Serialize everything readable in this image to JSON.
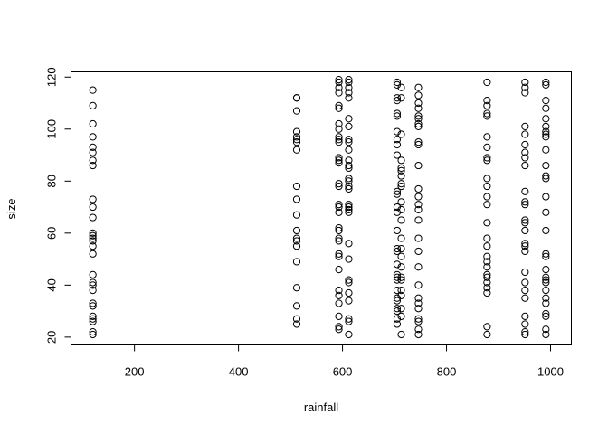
{
  "chart_data": {
    "type": "scatter",
    "xlabel": "rainfall",
    "ylabel": "size",
    "xlim": [
      78,
      1040
    ],
    "ylim": [
      17,
      122
    ],
    "xticks": [
      200,
      400,
      600,
      800,
      1000
    ],
    "yticks": [
      20,
      40,
      60,
      80,
      100,
      120
    ],
    "marker": "open-circle",
    "grid": false,
    "points": [
      [
        120,
        115
      ],
      [
        120,
        109
      ],
      [
        120,
        102
      ],
      [
        120,
        97
      ],
      [
        120,
        93
      ],
      [
        120,
        91
      ],
      [
        120,
        88
      ],
      [
        120,
        86
      ],
      [
        120,
        73
      ],
      [
        120,
        70
      ],
      [
        120,
        66
      ],
      [
        120,
        60
      ],
      [
        120,
        59
      ],
      [
        120,
        58
      ],
      [
        120,
        57
      ],
      [
        120,
        55
      ],
      [
        120,
        52
      ],
      [
        120,
        44
      ],
      [
        120,
        41
      ],
      [
        120,
        40
      ],
      [
        120,
        38
      ],
      [
        120,
        33
      ],
      [
        120,
        32
      ],
      [
        120,
        28
      ],
      [
        120,
        27
      ],
      [
        120,
        26
      ],
      [
        120,
        22
      ],
      [
        120,
        21
      ],
      [
        512,
        112
      ],
      [
        512,
        112
      ],
      [
        512,
        107
      ],
      [
        512,
        99
      ],
      [
        512,
        97
      ],
      [
        512,
        96
      ],
      [
        512,
        95
      ],
      [
        512,
        92
      ],
      [
        512,
        78
      ],
      [
        512,
        73
      ],
      [
        512,
        67
      ],
      [
        512,
        61
      ],
      [
        512,
        58
      ],
      [
        512,
        57
      ],
      [
        512,
        55
      ],
      [
        512,
        49
      ],
      [
        512,
        39
      ],
      [
        512,
        32
      ],
      [
        512,
        27
      ],
      [
        512,
        25
      ],
      [
        593,
        119
      ],
      [
        593,
        118
      ],
      [
        593,
        116
      ],
      [
        593,
        114
      ],
      [
        593,
        109
      ],
      [
        593,
        108
      ],
      [
        593,
        102
      ],
      [
        593,
        100
      ],
      [
        593,
        97
      ],
      [
        593,
        96
      ],
      [
        593,
        95
      ],
      [
        593,
        89
      ],
      [
        593,
        88
      ],
      [
        593,
        87
      ],
      [
        593,
        79
      ],
      [
        593,
        78
      ],
      [
        593,
        71
      ],
      [
        593,
        70
      ],
      [
        593,
        68
      ],
      [
        593,
        62
      ],
      [
        593,
        61
      ],
      [
        593,
        58
      ],
      [
        593,
        57
      ],
      [
        593,
        52
      ],
      [
        593,
        51
      ],
      [
        593,
        46
      ],
      [
        593,
        38
      ],
      [
        593,
        36
      ],
      [
        593,
        33
      ],
      [
        593,
        28
      ],
      [
        593,
        24
      ],
      [
        593,
        23
      ],
      [
        612,
        119
      ],
      [
        612,
        118
      ],
      [
        612,
        116
      ],
      [
        612,
        114
      ],
      [
        612,
        112
      ],
      [
        612,
        104
      ],
      [
        612,
        101
      ],
      [
        612,
        96
      ],
      [
        612,
        95
      ],
      [
        612,
        92
      ],
      [
        612,
        88
      ],
      [
        612,
        86
      ],
      [
        612,
        85
      ],
      [
        612,
        81
      ],
      [
        612,
        80
      ],
      [
        612,
        78
      ],
      [
        612,
        77
      ],
      [
        612,
        71
      ],
      [
        612,
        70
      ],
      [
        612,
        69
      ],
      [
        612,
        68
      ],
      [
        612,
        56
      ],
      [
        612,
        50
      ],
      [
        612,
        42
      ],
      [
        612,
        41
      ],
      [
        612,
        37
      ],
      [
        612,
        34
      ],
      [
        612,
        27
      ],
      [
        612,
        26
      ],
      [
        612,
        21
      ],
      [
        705,
        118
      ],
      [
        705,
        117
      ],
      [
        705,
        112
      ],
      [
        705,
        111
      ],
      [
        705,
        106
      ],
      [
        705,
        105
      ],
      [
        705,
        99
      ],
      [
        705,
        96
      ],
      [
        705,
        94
      ],
      [
        705,
        90
      ],
      [
        705,
        76
      ],
      [
        705,
        75
      ],
      [
        705,
        70
      ],
      [
        705,
        68
      ],
      [
        705,
        61
      ],
      [
        705,
        54
      ],
      [
        705,
        53
      ],
      [
        705,
        48
      ],
      [
        705,
        44
      ],
      [
        705,
        43
      ],
      [
        705,
        42
      ],
      [
        705,
        38
      ],
      [
        705,
        35
      ],
      [
        705,
        34
      ],
      [
        705,
        31
      ],
      [
        705,
        30
      ],
      [
        705,
        27
      ],
      [
        705,
        25
      ],
      [
        713,
        116
      ],
      [
        713,
        112
      ],
      [
        713,
        98
      ],
      [
        713,
        88
      ],
      [
        713,
        85
      ],
      [
        713,
        84
      ],
      [
        713,
        82
      ],
      [
        713,
        79
      ],
      [
        713,
        78
      ],
      [
        713,
        72
      ],
      [
        713,
        69
      ],
      [
        713,
        65
      ],
      [
        713,
        58
      ],
      [
        713,
        54
      ],
      [
        713,
        51
      ],
      [
        713,
        47
      ],
      [
        713,
        43
      ],
      [
        713,
        42
      ],
      [
        713,
        38
      ],
      [
        713,
        36
      ],
      [
        713,
        31
      ],
      [
        713,
        28
      ],
      [
        713,
        21
      ],
      [
        746,
        116
      ],
      [
        746,
        113
      ],
      [
        746,
        110
      ],
      [
        746,
        108
      ],
      [
        746,
        105
      ],
      [
        746,
        104
      ],
      [
        746,
        102
      ],
      [
        746,
        101
      ],
      [
        746,
        95
      ],
      [
        746,
        94
      ],
      [
        746,
        86
      ],
      [
        746,
        77
      ],
      [
        746,
        74
      ],
      [
        746,
        71
      ],
      [
        746,
        69
      ],
      [
        746,
        65
      ],
      [
        746,
        58
      ],
      [
        746,
        53
      ],
      [
        746,
        47
      ],
      [
        746,
        40
      ],
      [
        746,
        35
      ],
      [
        746,
        33
      ],
      [
        746,
        31
      ],
      [
        746,
        27
      ],
      [
        746,
        26
      ],
      [
        746,
        23
      ],
      [
        746,
        21
      ],
      [
        878,
        118
      ],
      [
        878,
        111
      ],
      [
        878,
        109
      ],
      [
        878,
        106
      ],
      [
        878,
        105
      ],
      [
        878,
        97
      ],
      [
        878,
        93
      ],
      [
        878,
        89
      ],
      [
        878,
        88
      ],
      [
        878,
        81
      ],
      [
        878,
        78
      ],
      [
        878,
        74
      ],
      [
        878,
        71
      ],
      [
        878,
        64
      ],
      [
        878,
        58
      ],
      [
        878,
        55
      ],
      [
        878,
        51
      ],
      [
        878,
        49
      ],
      [
        878,
        47
      ],
      [
        878,
        44
      ],
      [
        878,
        43
      ],
      [
        878,
        41
      ],
      [
        878,
        39
      ],
      [
        878,
        37
      ],
      [
        878,
        24
      ],
      [
        878,
        21
      ],
      [
        951,
        118
      ],
      [
        951,
        116
      ],
      [
        951,
        114
      ],
      [
        951,
        101
      ],
      [
        951,
        98
      ],
      [
        951,
        94
      ],
      [
        951,
        91
      ],
      [
        951,
        89
      ],
      [
        951,
        86
      ],
      [
        951,
        76
      ],
      [
        951,
        72
      ],
      [
        951,
        71
      ],
      [
        951,
        65
      ],
      [
        951,
        64
      ],
      [
        951,
        61
      ],
      [
        951,
        56
      ],
      [
        951,
        55
      ],
      [
        951,
        53
      ],
      [
        951,
        45
      ],
      [
        951,
        41
      ],
      [
        951,
        38
      ],
      [
        951,
        35
      ],
      [
        951,
        28
      ],
      [
        951,
        25
      ],
      [
        951,
        22
      ],
      [
        951,
        21
      ],
      [
        991,
        118
      ],
      [
        991,
        117
      ],
      [
        991,
        111
      ],
      [
        991,
        108
      ],
      [
        991,
        104
      ],
      [
        991,
        101
      ],
      [
        991,
        99
      ],
      [
        991,
        98
      ],
      [
        991,
        97
      ],
      [
        991,
        92
      ],
      [
        991,
        86
      ],
      [
        991,
        82
      ],
      [
        991,
        81
      ],
      [
        991,
        74
      ],
      [
        991,
        68
      ],
      [
        991,
        61
      ],
      [
        991,
        52
      ],
      [
        991,
        51
      ],
      [
        991,
        46
      ],
      [
        991,
        43
      ],
      [
        991,
        42
      ],
      [
        991,
        41
      ],
      [
        991,
        38
      ],
      [
        991,
        35
      ],
      [
        991,
        33
      ],
      [
        991,
        29
      ],
      [
        991,
        28
      ],
      [
        991,
        23
      ],
      [
        991,
        21
      ]
    ]
  }
}
